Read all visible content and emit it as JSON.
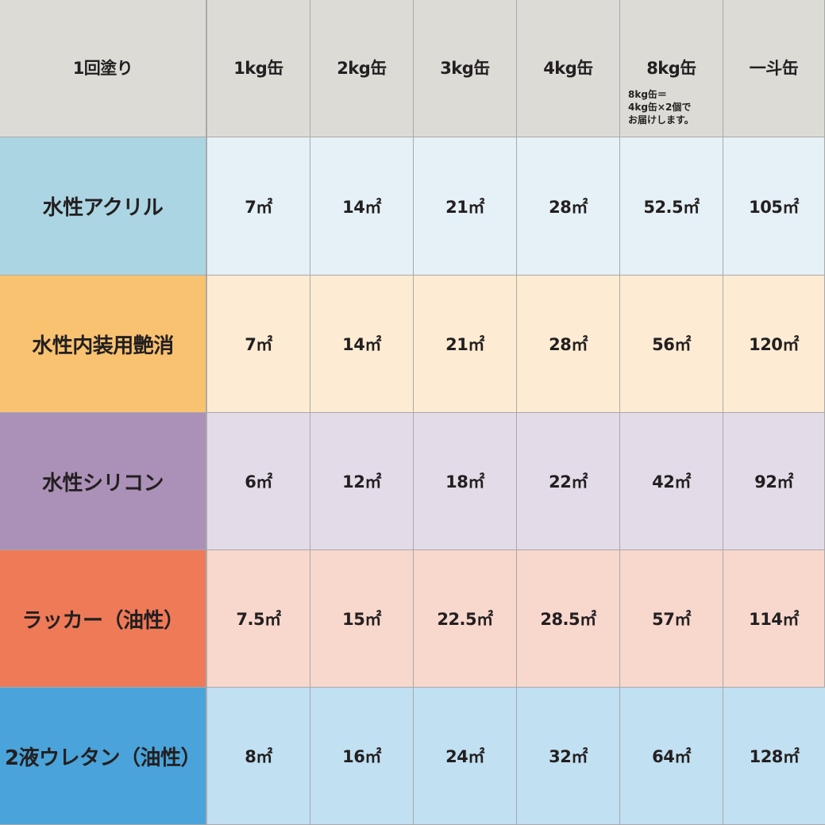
{
  "header": {
    "corner": "1回塗り",
    "columns": [
      "1kg缶",
      "2kg缶",
      "3kg缶",
      "4kg缶",
      "8kg缶",
      "一斗缶"
    ],
    "note_8kg": [
      "8kg缶＝",
      "4kg缶×2個で",
      "お届けします。"
    ]
  },
  "rows": [
    {
      "label": "水性アクリル",
      "label_color": "#acd5e3",
      "cell_color": "#e5f1f6",
      "values": [
        "7㎡",
        "14㎡",
        "21㎡",
        "28㎡",
        "52.5㎡",
        "105㎡"
      ]
    },
    {
      "label": "水性内装用艶消",
      "label_color": "#f8c271",
      "cell_color": "#fdecd3",
      "values": [
        "7㎡",
        "14㎡",
        "21㎡",
        "28㎡",
        "56㎡",
        "120㎡"
      ]
    },
    {
      "label": "水性シリコン",
      "label_color": "#ab91b8",
      "cell_color": "#e4dbe8",
      "values": [
        "6㎡",
        "12㎡",
        "18㎡",
        "22㎡",
        "42㎡",
        "92㎡"
      ]
    },
    {
      "label": "ラッカー（油性）",
      "label_color": "#ee7a58",
      "cell_color": "#f8d7cd",
      "values": [
        "7.5㎡",
        "15㎡",
        "22.5㎡",
        "28.5㎡",
        "57㎡",
        "114㎡"
      ]
    },
    {
      "label": "2液ウレタン（油性）",
      "label_color": "#4aa3da",
      "cell_color": "#c1e0f2",
      "values": [
        "8㎡",
        "16㎡",
        "24㎡",
        "32㎡",
        "64㎡",
        "128㎡"
      ]
    }
  ],
  "colors": {
    "header_bg": "#dddbd6",
    "border": "#a9a9a9",
    "text": "#231f20"
  }
}
